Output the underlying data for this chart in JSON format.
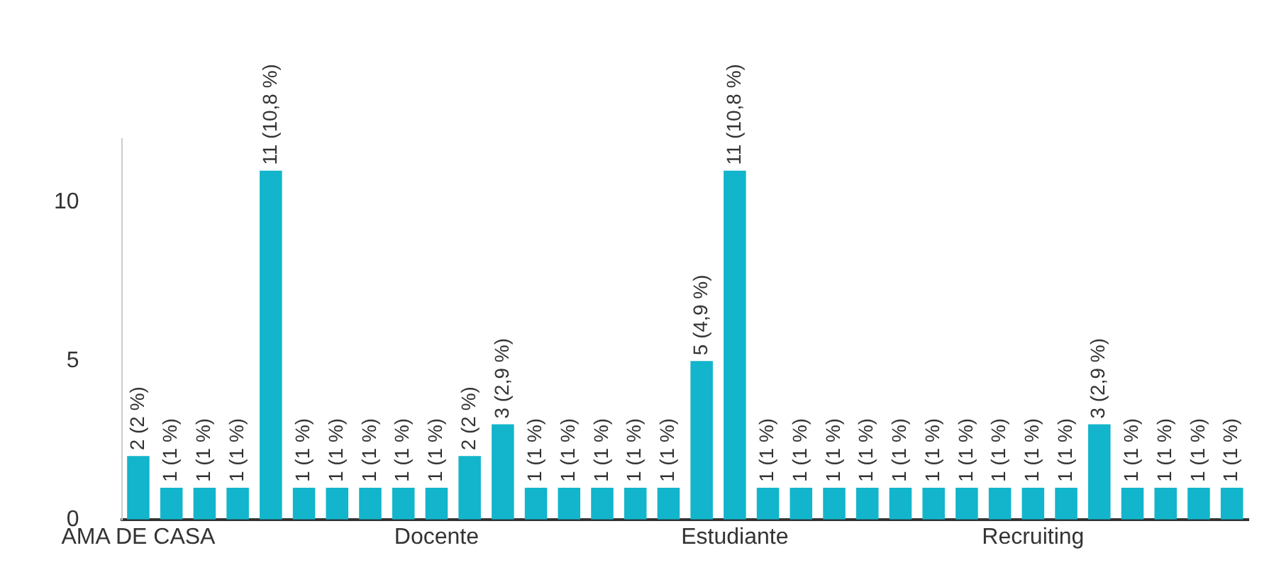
{
  "chart_data": {
    "type": "bar",
    "categories": [
      "AMA DE CASA",
      null,
      null,
      null,
      null,
      null,
      null,
      null,
      null,
      "Docente",
      null,
      null,
      null,
      null,
      null,
      null,
      null,
      null,
      "Estudiante",
      null,
      null,
      null,
      null,
      null,
      null,
      null,
      null,
      "Recruiting",
      null,
      null,
      null,
      null,
      null,
      null
    ],
    "values": [
      2,
      1,
      1,
      1,
      11,
      1,
      1,
      1,
      1,
      1,
      2,
      3,
      1,
      1,
      1,
      1,
      1,
      5,
      11,
      1,
      1,
      1,
      1,
      1,
      1,
      1,
      1,
      1,
      1,
      3,
      1,
      1,
      1,
      1
    ],
    "value_labels": [
      "2 (2 %)",
      "1 (1 %)",
      "1 (1 %)",
      "1 (1 %)",
      "11 (10,8 %)",
      "1 (1 %)",
      "1 (1 %)",
      "1 (1 %)",
      "1 (1 %)",
      "1 (1 %)",
      "2 (2 %)",
      "3 (2,9 %)",
      "1 (1 %)",
      "1 (1 %)",
      "1 (1 %)",
      "1 (1 %)",
      "1 (1 %)",
      "5 (4,9 %)",
      "11 (10,8 %)",
      "1 (1 %)",
      "1 (1 %)",
      "1 (1 %)",
      "1 (1 %)",
      "1 (1 %)",
      "1 (1 %)",
      "1 (1 %)",
      "1 (1 %)",
      "1 (1 %)",
      "1 (1 %)",
      "3 (2,9 %)",
      "1 (1 %)",
      "1 (1 %)",
      "1 (1 %)",
      "1 (1 %)"
    ],
    "color": "#12b5cb",
    "ylim": [
      0,
      12
    ],
    "yticks": [
      0,
      5,
      10
    ],
    "grid": false,
    "legend": false
  }
}
